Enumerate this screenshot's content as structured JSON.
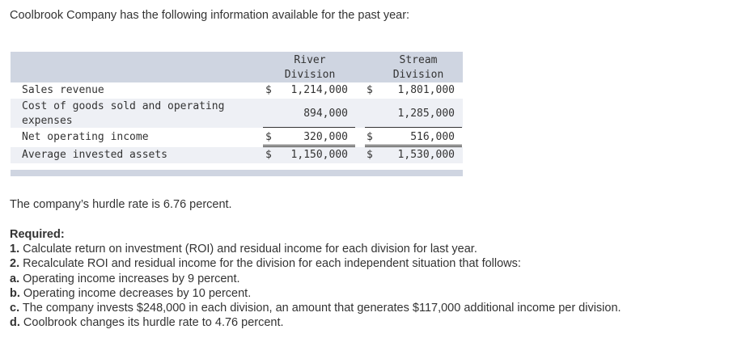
{
  "intro": "Coolbrook Company has the following information available for the past year:",
  "table": {
    "headers": {
      "river_line1": "River",
      "river_line2": "Division",
      "stream_line1": "Stream",
      "stream_line2": "Division"
    },
    "rows": [
      {
        "label": "Sales revenue",
        "river_dollar": "$",
        "river": "1,214,000",
        "stream_dollar": "$",
        "stream": "1,801,000"
      },
      {
        "label_line1": "Cost of goods sold and operating",
        "label_line2": "expenses",
        "river_dollar": "",
        "river": "894,000",
        "stream_dollar": "",
        "stream": "1,285,000"
      },
      {
        "label": "Net operating income",
        "river_dollar": "$",
        "river": "320,000",
        "stream_dollar": "$",
        "stream": "516,000"
      },
      {
        "label": "Average invested assets",
        "river_dollar": "$",
        "river": "1,150,000",
        "stream_dollar": "$",
        "stream": "1,530,000"
      }
    ]
  },
  "hurdle": "The company’s hurdle rate is 6.76 percent.",
  "required": {
    "heading": "Required:",
    "items": [
      {
        "prefix": "1.",
        "text": " Calculate return on investment (ROI) and residual income for each division for last year."
      },
      {
        "prefix": "2.",
        "text": " Recalculate ROI and residual income for the division for each independent situation that follows:"
      },
      {
        "prefix": "a.",
        "text": " Operating income increases by 9 percent."
      },
      {
        "prefix": "b.",
        "text": " Operating income decreases by 10 percent."
      },
      {
        "prefix": "c.",
        "text": " The company invests $248,000 in each division, an amount that generates $117,000 additional income per division."
      },
      {
        "prefix": "d.",
        "text": " Coolbrook changes its hurdle rate to 4.76 percent."
      }
    ]
  }
}
